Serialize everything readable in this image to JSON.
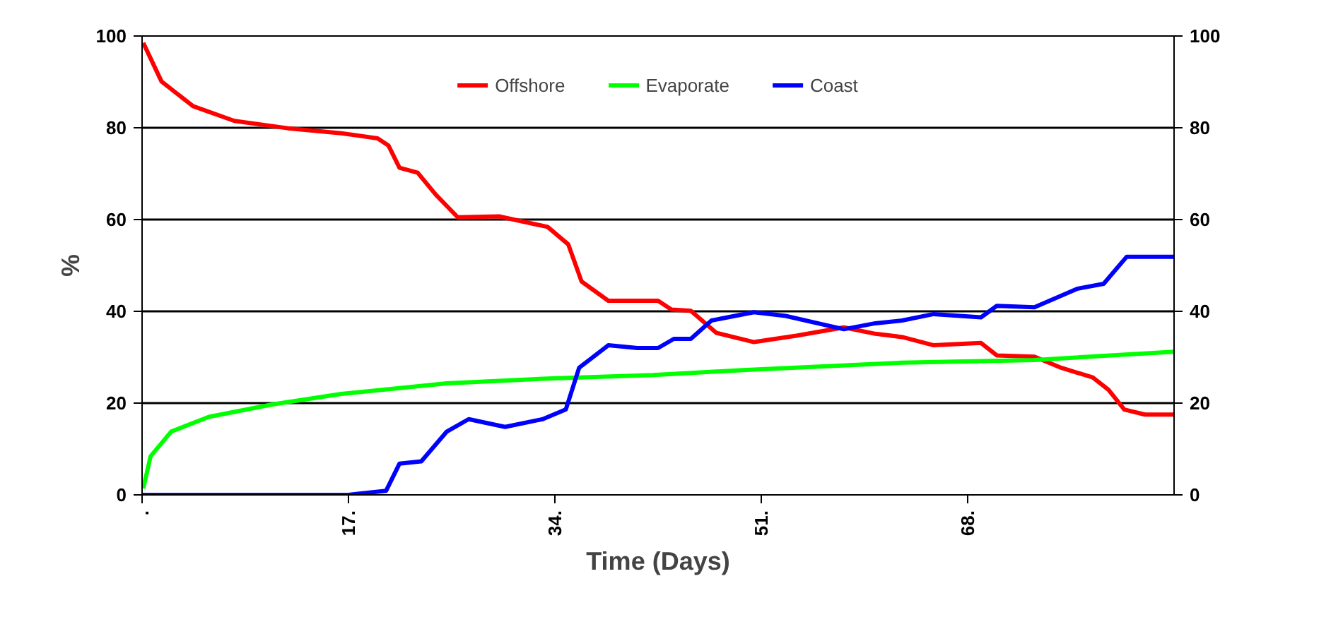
{
  "chart_data": {
    "type": "line",
    "xlabel": "Time (Days)",
    "ylabel": "%",
    "xlim": [
      0,
      85
    ],
    "ylim": [
      0,
      100
    ],
    "y2lim": [
      0,
      100
    ],
    "xticks": [
      {
        "value": 0,
        "label": "."
      },
      {
        "value": 17,
        "label": "17."
      },
      {
        "value": 34,
        "label": "34."
      },
      {
        "value": 51,
        "label": "51."
      },
      {
        "value": 68,
        "label": "68."
      }
    ],
    "yticks": [
      0,
      20,
      40,
      60,
      80,
      100
    ],
    "y2ticks": [
      0,
      20,
      40,
      60,
      80,
      100
    ],
    "grid": "y",
    "legend": "top",
    "series": [
      {
        "name": "Offshore",
        "color": "#ff0000",
        "x": [
          0.1,
          1.6,
          4.2,
          7.6,
          12,
          16.4,
          19.4,
          20.3,
          21.2,
          22.7,
          24.2,
          26,
          29.4,
          33.4,
          35.1,
          36.2,
          38.4,
          40.8,
          42.5,
          43.6,
          45.2,
          47.3,
          50.4,
          53.9,
          57.8,
          60.4,
          62.6,
          65.2,
          69.1,
          70.4,
          73.5,
          75.7,
          78.3,
          79.6,
          80.9,
          82.6,
          85
        ],
        "values": [
          98.5,
          90.1,
          84.7,
          81.5,
          79.9,
          78.8,
          77.7,
          76.1,
          71.3,
          70.2,
          65.4,
          60.5,
          60.7,
          58.4,
          54.6,
          46.5,
          42.3,
          42.3,
          42.3,
          40.4,
          40.1,
          35.3,
          33.3,
          34.7,
          36.5,
          35.1,
          34.4,
          32.6,
          33.1,
          30.4,
          30.1,
          27.7,
          25.6,
          22.9,
          18.6,
          17.5,
          17.5
        ]
      },
      {
        "name": "Evaporate",
        "color": "#00ff00",
        "x": [
          0.1,
          0.7,
          2.4,
          5.5,
          10.7,
          16.4,
          25.1,
          33.8,
          42.1,
          49.5,
          62.6,
          73.5,
          85
        ],
        "values": [
          1.4,
          8.4,
          13.8,
          17,
          19.7,
          22,
          24.3,
          25.4,
          26.1,
          27.2,
          28.8,
          29.4,
          31.2
        ]
      },
      {
        "name": "Coast",
        "color": "#0000ff",
        "x": [
          0,
          17,
          20.1,
          21.2,
          23,
          25.1,
          26.9,
          29.9,
          33,
          34.9,
          36,
          38.4,
          40.8,
          42.5,
          43.8,
          45.2,
          46.9,
          50.4,
          53,
          57.8,
          60.4,
          62.6,
          65.2,
          69.1,
          70.4,
          73.5,
          77,
          79.2,
          81.1,
          85
        ],
        "values": [
          0,
          0,
          0.9,
          6.8,
          7.3,
          13.8,
          16.5,
          14.8,
          16.5,
          18.6,
          27.7,
          32.6,
          32,
          32,
          34,
          34,
          38,
          39.8,
          39,
          36.1,
          37.4,
          38,
          39.4,
          38.7,
          41.2,
          40.9,
          44.9,
          46,
          51.9,
          51.9
        ]
      }
    ]
  }
}
